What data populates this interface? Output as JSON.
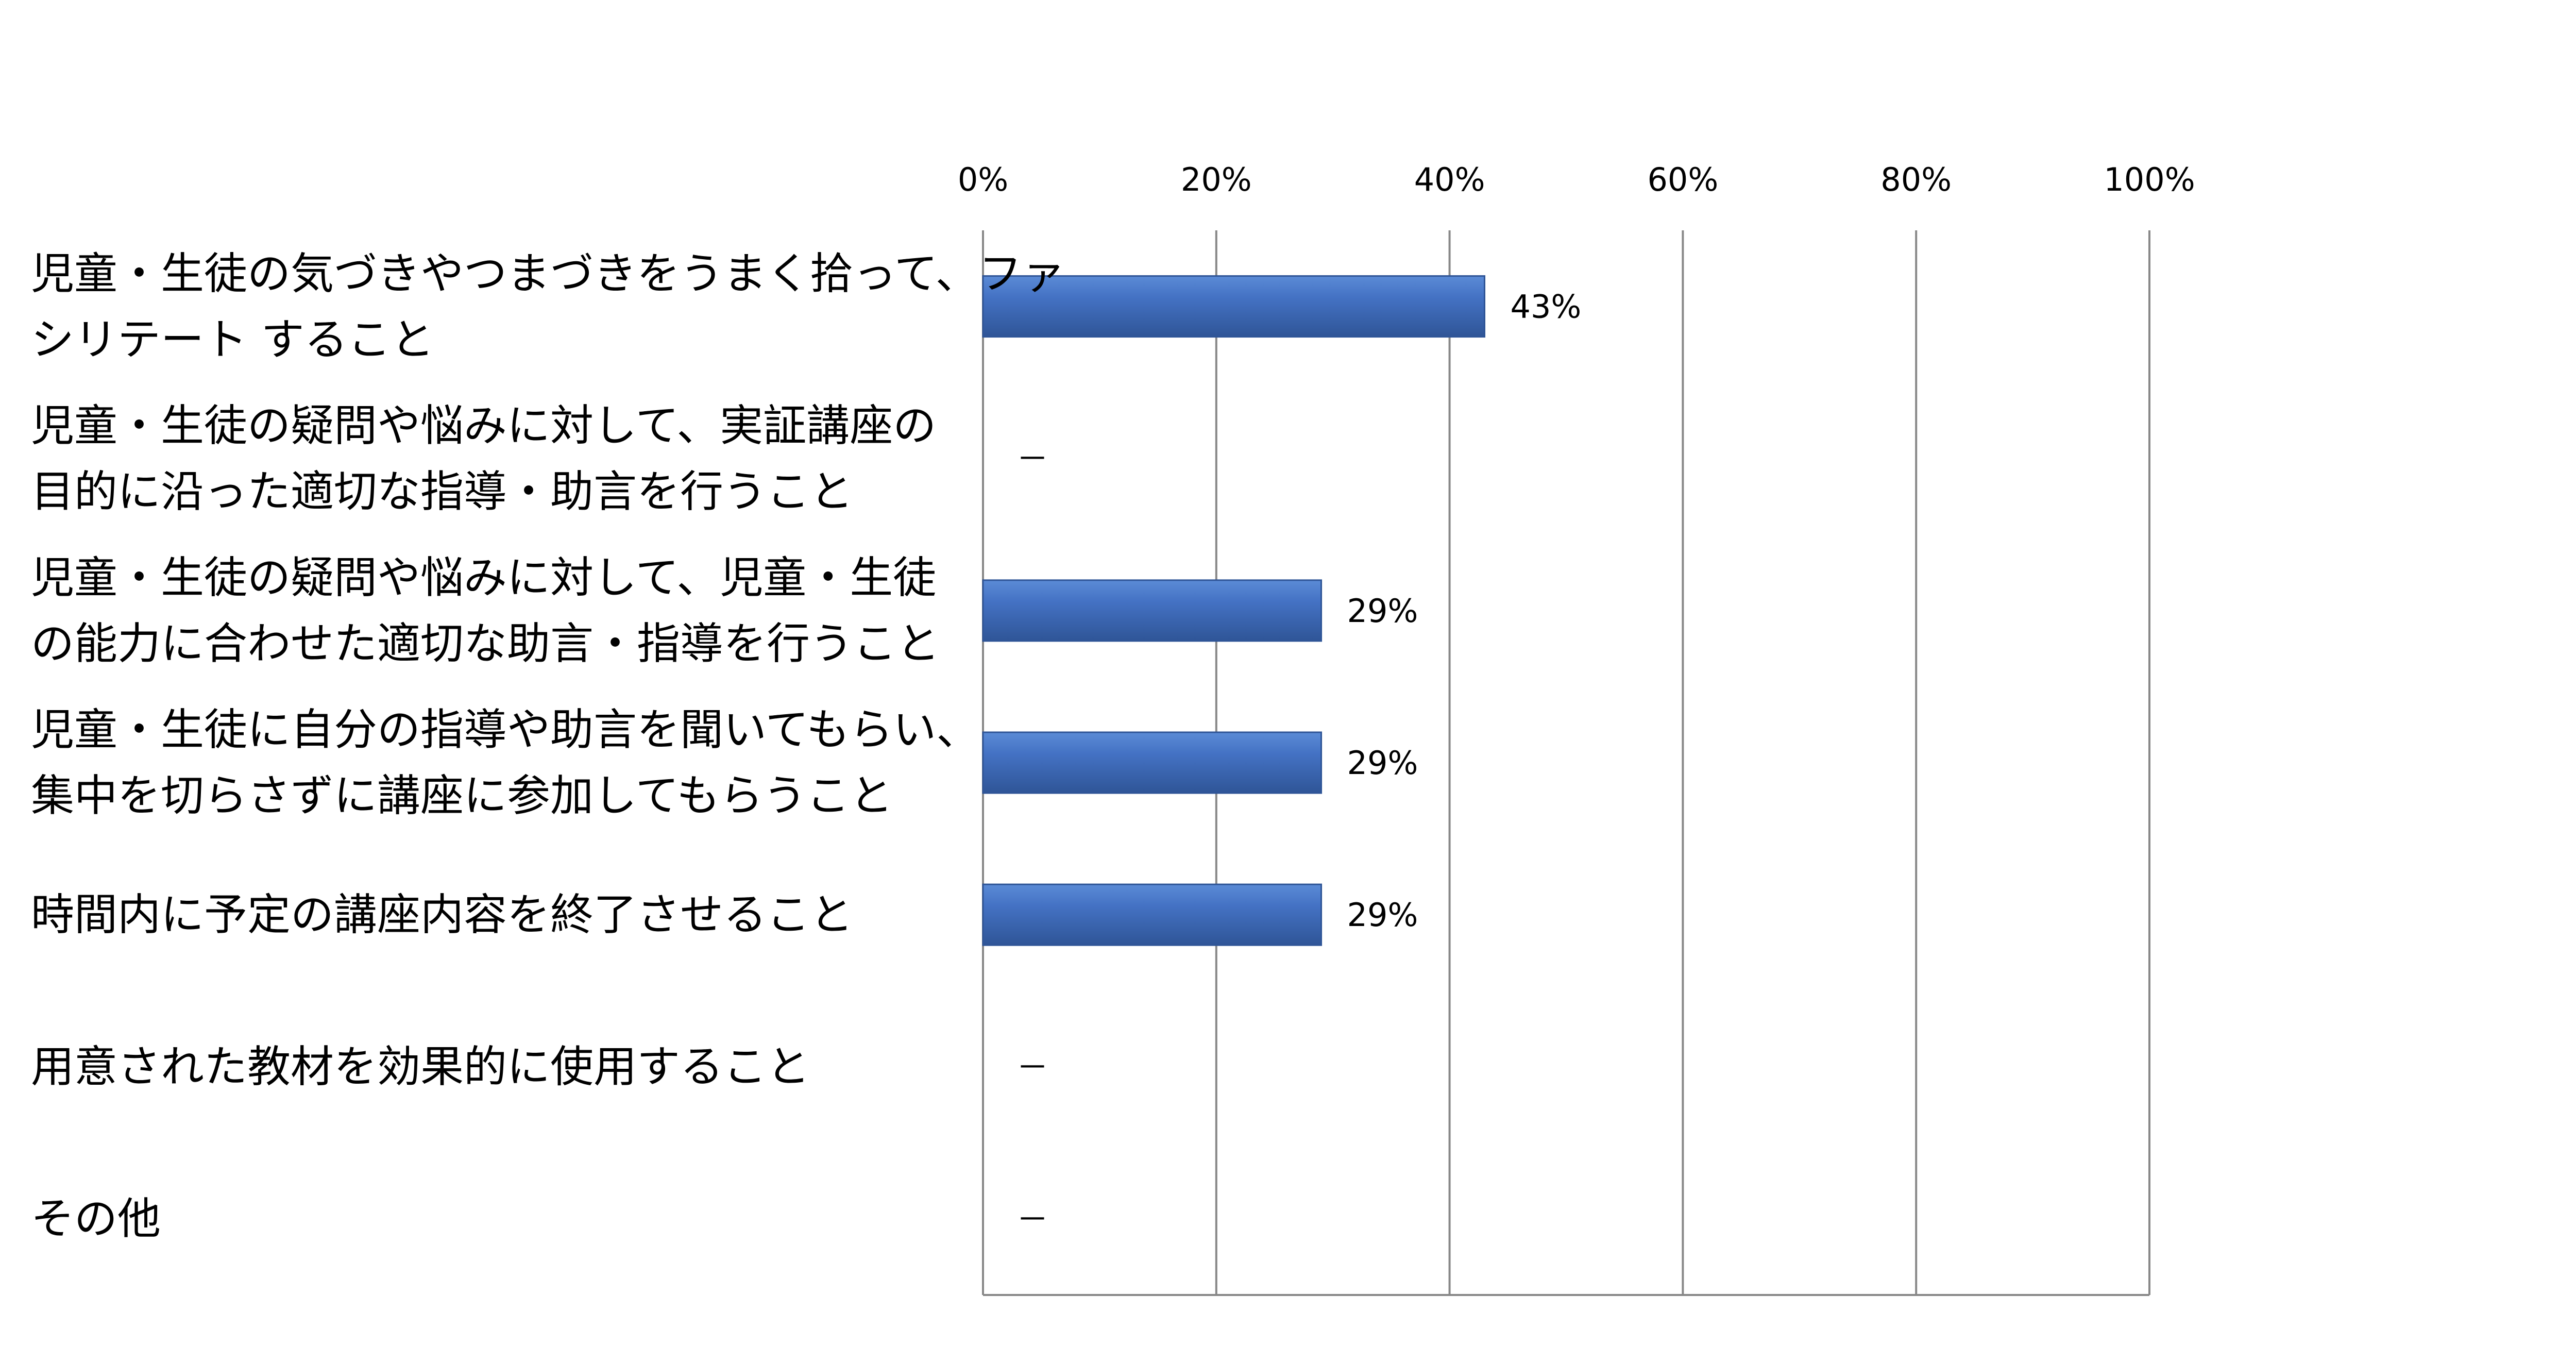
{
  "chart_data": {
    "type": "bar",
    "orientation": "horizontal",
    "categories": [
      "児童・生徒の気づきやつまづきをうまく拾って、ファ\nシリテート すること",
      "児童・生徒の疑問や悩みに対して、実証講座の\n目的に沿った適切な指導・助言を行うこと",
      "児童・生徒の疑問や悩みに対して、児童・生徒\nの能力に合わせた適切な助言・指導を行うこと",
      "児童・生徒に自分の指導や助言を聞いてもらい、\n集中を切らさずに講座に参加してもらうこと",
      "時間内に予定の講座内容を終了させること",
      "用意された教材を効果的に使用すること",
      "その他"
    ],
    "values": [
      43,
      null,
      29,
      29,
      29,
      null,
      null
    ],
    "data_labels": [
      "43%",
      "－",
      "29%",
      "29%",
      "29%",
      "－",
      "－"
    ],
    "xlim": [
      0,
      100
    ],
    "xticks": [
      "0%",
      "20%",
      "40%",
      "60%",
      "80%",
      "100%"
    ],
    "x_axis_position": "top",
    "grid": true,
    "legend": "none",
    "bar_color": "#4472C4",
    "bar_color_dark": "#2F5597",
    "grid_color": "#888888"
  }
}
